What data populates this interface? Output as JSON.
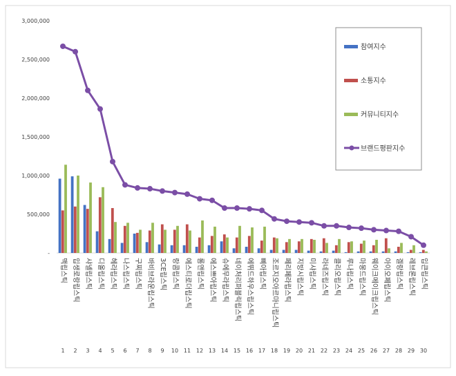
{
  "chart_data": {
    "type": "bar",
    "title": "",
    "xlabel": "",
    "ylabel": "",
    "ylim": [
      0,
      3000000
    ],
    "yticks": [
      "-",
      "500,000",
      "1,000,000",
      "1,500,000",
      "2,000,000",
      "2,500,000",
      "3,000,000"
    ],
    "grid": false,
    "legend_position": "right",
    "ranks": [
      "1",
      "2",
      "3",
      "4",
      "5",
      "6",
      "7",
      "8",
      "9",
      "10",
      "11",
      "12",
      "13",
      "14",
      "15",
      "16",
      "17",
      "18",
      "19",
      "20",
      "21",
      "22",
      "23",
      "24",
      "25",
      "26",
      "27",
      "28",
      "29",
      "30"
    ],
    "categories": [
      "맥립스틱",
      "입생로랑립스틱",
      "샤넬립스틱",
      "디올립스틱",
      "헤라립스틱",
      "나스립스틱",
      "구찌립스틱",
      "바비브라운립스틱",
      "3CE립스틱",
      "랑콤립스틱",
      "에스티로더립스틱",
      "롬앤립스틱",
      "에스쁘아립스틱",
      "슈에무라립스틱",
      "네이처리퍼블릭립스틱",
      "에뛰드하우스립스틱",
      "삐아립스틱",
      "조르지오아르마니립스틱",
      "페리페라립스틱",
      "지방시립스틱",
      "미샤립스틱",
      "라네즈립스틱",
      "클리오립스틱",
      "루나립스틱",
      "마몽드립스틱",
      "웨이크메이크립스틱",
      "아이오페립스틱",
      "겔랑립스틱",
      "레브론립스틱",
      "입큰립스틱"
    ],
    "series": [
      {
        "name": "참여지수",
        "color": "#4472C4",
        "values": [
          960000,
          990000,
          620000,
          280000,
          180000,
          130000,
          250000,
          140000,
          110000,
          100000,
          100000,
          80000,
          100000,
          150000,
          60000,
          80000,
          60000,
          40000,
          40000,
          40000,
          30000,
          20000,
          30000,
          10000,
          20000,
          20000,
          20000,
          20000,
          10000,
          10000
        ]
      },
      {
        "name": "소통지수",
        "color": "#C0504D",
        "values": [
          550000,
          600000,
          570000,
          720000,
          580000,
          350000,
          260000,
          290000,
          370000,
          300000,
          370000,
          200000,
          220000,
          240000,
          200000,
          220000,
          160000,
          200000,
          140000,
          150000,
          180000,
          190000,
          100000,
          140000,
          120000,
          100000,
          190000,
          80000,
          40000,
          40000
        ]
      },
      {
        "name": "커뮤니티지수",
        "color": "#9BBB59",
        "values": [
          1140000,
          1000000,
          910000,
          850000,
          400000,
          390000,
          300000,
          390000,
          300000,
          350000,
          290000,
          420000,
          340000,
          200000,
          350000,
          330000,
          340000,
          190000,
          180000,
          180000,
          170000,
          130000,
          180000,
          150000,
          160000,
          170000,
          60000,
          130000,
          100000,
          20000
        ]
      },
      {
        "name": "브랜드평판지수",
        "color": "#7B4EA6",
        "type": "line",
        "values": [
          2670000,
          2600000,
          2100000,
          1860000,
          1180000,
          880000,
          840000,
          830000,
          800000,
          780000,
          760000,
          700000,
          680000,
          580000,
          580000,
          570000,
          550000,
          440000,
          410000,
          400000,
          390000,
          350000,
          350000,
          330000,
          320000,
          300000,
          290000,
          280000,
          210000,
          100000
        ]
      }
    ]
  }
}
